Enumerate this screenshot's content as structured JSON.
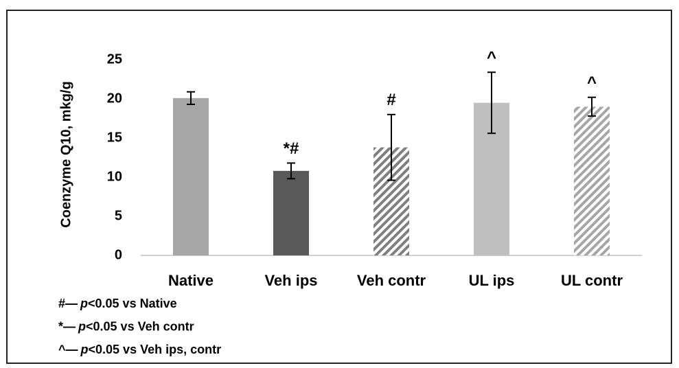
{
  "chart_data": {
    "type": "bar",
    "y_label": "Coenzyme Q10, mkg/g",
    "categories": [
      "Native",
      "Veh ips",
      "Veh contr",
      "UL ips",
      "UL contr"
    ],
    "values": [
      20.1,
      10.8,
      13.8,
      19.5,
      19.0
    ],
    "errors": [
      0.8,
      1.0,
      4.2,
      3.9,
      1.2
    ],
    "annotations": [
      null,
      "*#",
      "#",
      "^",
      "^"
    ],
    "colors": [
      "#a6a6a6",
      "#595959",
      "#7f7f7f",
      "#bfbfbf",
      "#a6a6a6"
    ],
    "hatched": [
      false,
      false,
      true,
      false,
      true
    ],
    "ylim": [
      0,
      25
    ],
    "yticks": [
      0,
      5,
      10,
      15,
      20,
      25
    ],
    "grid": false,
    "footnotes": [
      {
        "mark": "#—",
        "italic": "p",
        "text": "<0.05 vs Native"
      },
      {
        "mark": "*—",
        "italic": "p",
        "text": "<0.05 vs Veh contr"
      },
      {
        "mark": "^—",
        "italic": "p",
        "text": "<0.05 vs Veh ips, contr"
      }
    ]
  }
}
